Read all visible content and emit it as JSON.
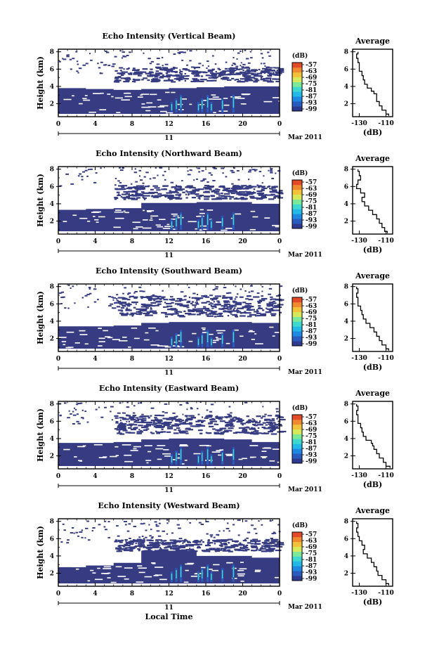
{
  "chart_data": [
    {
      "type": "heatmap",
      "title": "Echo Intensity (Vertical Beam)",
      "xlabel": "",
      "ylabel": "Height (km)",
      "xticks": [
        "0",
        "4",
        "8",
        "12",
        "16",
        "20",
        "0"
      ],
      "xlim": [
        0,
        24
      ],
      "yticks": [
        "2",
        "4",
        "6",
        "8"
      ],
      "ylim": [
        0.5,
        8.3
      ],
      "date_day": "11",
      "date_month": "Mar 2011",
      "colorbar_unit": "(dB)",
      "colorbar_ticks": [
        "-57",
        "-63",
        "-69",
        "-75",
        "-81",
        "-87",
        "-93",
        "-99"
      ],
      "layer_top_km": [
        3.8,
        3.7,
        3.6,
        3.7,
        3.8,
        3.9,
        4.0,
        4.0
      ],
      "upper_layer": [
        4.6,
        6.3
      ],
      "profile": {
        "title": "Average",
        "xlabel": "(dB)",
        "xticks": [
          "-130",
          "-110"
        ],
        "xlim": [
          -135,
          -105
        ],
        "yticks": [
          "2",
          "4",
          "6",
          "8"
        ],
        "height_km": [
          0.6,
          1.0,
          1.5,
          2.0,
          2.5,
          3.0,
          3.3,
          3.6,
          4.0,
          4.5,
          5.0,
          5.5,
          6.0,
          6.5,
          7.0,
          7.5,
          8.0
        ],
        "echo_db": [
          -108,
          -110,
          -113,
          -115,
          -117,
          -117,
          -119,
          -121,
          -124,
          -126,
          -127,
          -128,
          -130,
          -130,
          -131,
          -132,
          -131
        ]
      }
    },
    {
      "type": "heatmap",
      "title": "Echo Intensity (Northward Beam)",
      "xlabel": "",
      "ylabel": "Height (km)",
      "xticks": [
        "0",
        "4",
        "8",
        "12",
        "16",
        "20",
        "0"
      ],
      "xlim": [
        0,
        24
      ],
      "yticks": [
        "2",
        "4",
        "6",
        "8"
      ],
      "ylim": [
        0.5,
        8.3
      ],
      "date_day": "11",
      "date_month": "Mar 2011",
      "colorbar_unit": "(dB)",
      "colorbar_ticks": [
        "-57",
        "-63",
        "-69",
        "-75",
        "-81",
        "-87",
        "-93",
        "-99"
      ],
      "layer_top_km": [
        3.3,
        3.4,
        3.5,
        4.1,
        4.1,
        4.2,
        4.2,
        4.0
      ],
      "upper_layer": [
        4.6,
        6.2
      ],
      "profile": {
        "title": "Average",
        "xlabel": "(dB)",
        "xticks": [
          "-130",
          "-110"
        ],
        "xlim": [
          -135,
          -105
        ],
        "yticks": [
          "2",
          "4",
          "6",
          "8"
        ],
        "height_km": [
          0.6,
          1.0,
          1.5,
          2.0,
          2.5,
          3.0,
          3.5,
          4.0,
          4.5,
          5.0,
          5.5,
          6.0,
          6.5,
          7.0,
          7.5,
          8.0
        ],
        "echo_db": [
          -109,
          -111,
          -113,
          -115,
          -117,
          -120,
          -123,
          -126,
          -128,
          -126,
          -129,
          -132,
          -131,
          -129,
          -130,
          -131
        ]
      }
    },
    {
      "type": "heatmap",
      "title": "Echo Intensity (Southward Beam)",
      "xlabel": "",
      "ylabel": "Height (km)",
      "xticks": [
        "0",
        "4",
        "8",
        "12",
        "16",
        "20",
        "0"
      ],
      "xlim": [
        0,
        24
      ],
      "yticks": [
        "2",
        "4",
        "6",
        "8"
      ],
      "ylim": [
        0.5,
        8.3
      ],
      "date_day": "11",
      "date_month": "Mar 2011",
      "colorbar_unit": "(dB)",
      "colorbar_ticks": [
        "-57",
        "-63",
        "-69",
        "-75",
        "-81",
        "-87",
        "-93",
        "-99"
      ],
      "layer_top_km": [
        3.4,
        3.4,
        3.5,
        3.8,
        3.9,
        3.9,
        3.9,
        3.8
      ],
      "upper_layer": [
        4.6,
        7.0
      ],
      "profile": {
        "title": "Average",
        "xlabel": "(dB)",
        "xticks": [
          "-130",
          "-110"
        ],
        "xlim": [
          -135,
          -105
        ],
        "yticks": [
          "2",
          "4",
          "6",
          "8"
        ],
        "height_km": [
          0.6,
          1.0,
          1.5,
          2.0,
          2.5,
          3.0,
          3.5,
          4.0,
          4.5,
          5.0,
          5.5,
          6.0,
          6.5,
          7.0,
          7.5,
          8.0
        ],
        "echo_db": [
          -108,
          -110,
          -113,
          -115,
          -117,
          -119,
          -122,
          -125,
          -127,
          -128,
          -129,
          -131,
          -131,
          -132,
          -131,
          -132
        ]
      }
    },
    {
      "type": "heatmap",
      "title": "Echo Intensity (Eastward Beam)",
      "xlabel": "",
      "ylabel": "Height (km)",
      "xticks": [
        "0",
        "4",
        "8",
        "12",
        "16",
        "20",
        "0"
      ],
      "xlim": [
        0,
        24
      ],
      "yticks": [
        "2",
        "4",
        "6",
        "8"
      ],
      "ylim": [
        0.5,
        8.3
      ],
      "date_day": "11",
      "date_month": "Mar 2011",
      "colorbar_unit": "(dB)",
      "colorbar_ticks": [
        "-57",
        "-63",
        "-69",
        "-75",
        "-81",
        "-87",
        "-93",
        "-99"
      ],
      "layer_top_km": [
        3.5,
        3.5,
        3.6,
        3.9,
        4.0,
        4.0,
        3.9,
        3.6
      ],
      "upper_layer": [
        4.6,
        6.8
      ],
      "profile": {
        "title": "Average",
        "xlabel": "(dB)",
        "xticks": [
          "-130",
          "-110"
        ],
        "xlim": [
          -135,
          -105
        ],
        "yticks": [
          "2",
          "4",
          "6",
          "8"
        ],
        "height_km": [
          0.6,
          1.0,
          1.5,
          2.0,
          2.5,
          3.0,
          3.3,
          3.6,
          4.0,
          4.5,
          5.0,
          5.5,
          6.0,
          6.5,
          7.0,
          7.5,
          8.0
        ],
        "echo_db": [
          -107,
          -110,
          -112,
          -115,
          -117,
          -119,
          -120,
          -121,
          -125,
          -127,
          -128,
          -129,
          -131,
          -131,
          -132,
          -131,
          -132
        ]
      }
    },
    {
      "type": "heatmap",
      "title": "Echo Intensity (Westward Beam)",
      "xlabel": "Local Time",
      "ylabel": "Height (km)",
      "xticks": [
        "0",
        "4",
        "8",
        "12",
        "16",
        "20",
        "0"
      ],
      "xlim": [
        0,
        24
      ],
      "yticks": [
        "2",
        "4",
        "6",
        "8"
      ],
      "ylim": [
        0.5,
        8.3
      ],
      "date_day": "11",
      "date_month": "Mar 2011",
      "colorbar_unit": "(dB)",
      "colorbar_ticks": [
        "-57",
        "-63",
        "-69",
        "-75",
        "-81",
        "-87",
        "-93",
        "-99"
      ],
      "layer_top_km": [
        2.7,
        2.9,
        3.2,
        4.6,
        4.6,
        4.0,
        4.0,
        3.8
      ],
      "upper_layer": [
        4.6,
        6.0
      ],
      "profile": {
        "title": "Average",
        "xlabel": "(dB)",
        "xticks": [
          "-130",
          "-110"
        ],
        "xlim": [
          -135,
          -105
        ],
        "yticks": [
          "2",
          "4",
          "6",
          "8"
        ],
        "height_km": [
          0.6,
          1.0,
          1.5,
          2.0,
          2.5,
          3.0,
          3.5,
          4.0,
          4.5,
          5.0,
          5.5,
          6.0,
          6.5,
          7.0,
          7.5,
          8.0
        ],
        "echo_db": [
          -108,
          -110,
          -113,
          -116,
          -117,
          -119,
          -121,
          -124,
          -127,
          -126,
          -128,
          -130,
          -131,
          -132,
          -131,
          -132
        ]
      }
    }
  ],
  "colors": {
    "background": "#ffffff",
    "base_echo": "#373c82",
    "colorbar": [
      "#2e3a90",
      "#2a5bbf",
      "#1f88e0",
      "#22b8e8",
      "#3fd8d0",
      "#7be89a",
      "#d7e85a",
      "#f3c23c",
      "#f08a30",
      "#e24a2a"
    ]
  }
}
